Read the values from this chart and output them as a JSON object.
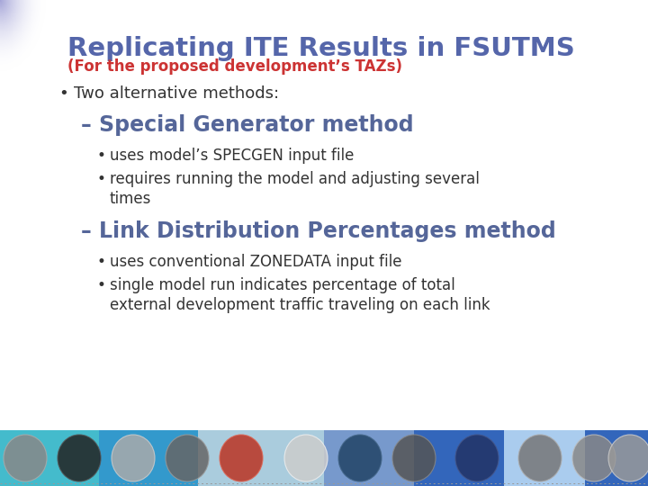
{
  "title": "Replicating ITE Results in FSUTMS",
  "subtitle": "(For the proposed development’s TAZs)",
  "title_color": "#5566aa",
  "subtitle_color": "#cc3333",
  "slide_bg": "#ffffff",
  "bullet1": "Two alternative methods:",
  "sub_heading1": "– Special Generator method",
  "sub_bullet1a": "uses model’s SPECGEN input file",
  "sub_bullet1b": "requires running the model and adjusting several\n        times",
  "sub_heading2": "– Link Distribution Percentages method",
  "sub_bullet2a": "uses conventional ZONEDATA input file",
  "sub_bullet2b": "single model run indicates percentage of total\n        external development traffic traveling on each link",
  "heading_color": "#556699",
  "text_color": "#333333",
  "top_left_gradient_top": "#c8ccee",
  "top_left_gradient_bot": "#ffffff",
  "footer_band1_color": "#44bbcc",
  "footer_band2_color": "#3399cc",
  "footer_band3_color": "#aaddee",
  "footer_band4_color": "#8899cc",
  "footer_band5_color": "#3366bb"
}
